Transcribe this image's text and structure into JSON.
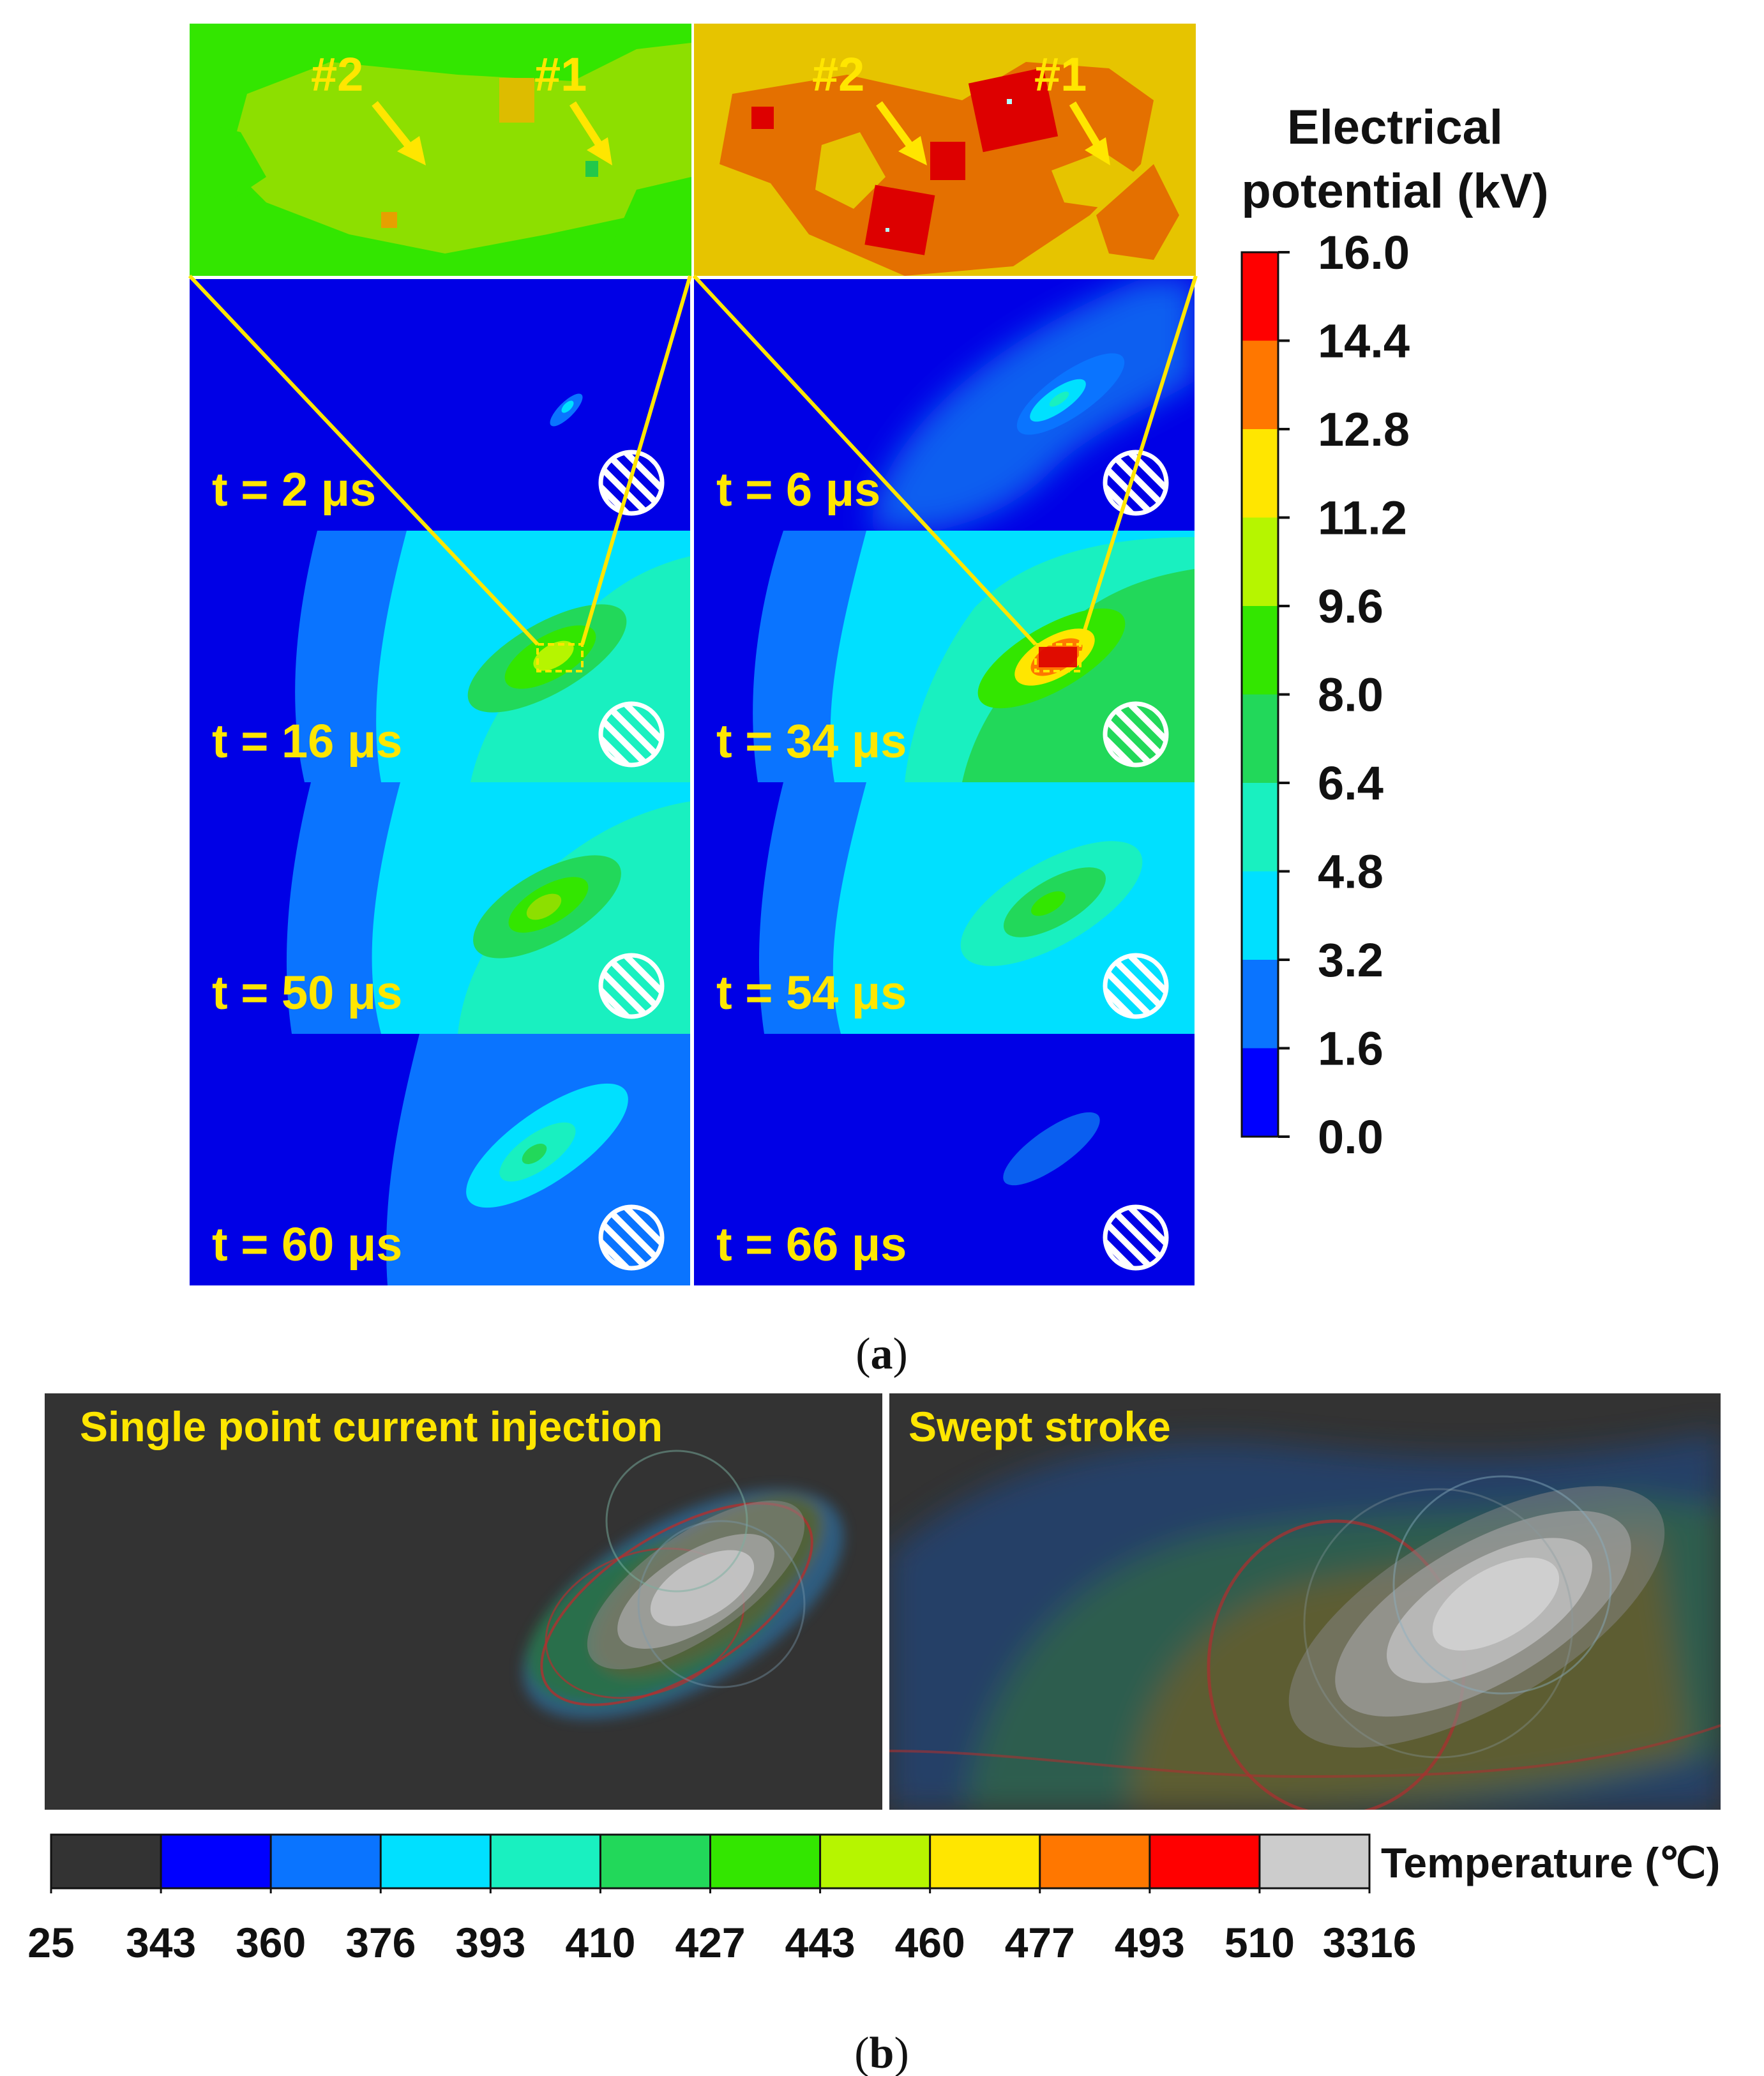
{
  "figure_a": {
    "caption_left": "(",
    "caption_letter": "a",
    "caption_right": ")",
    "zoom_row": {
      "left": {
        "markers": [
          {
            "label": "#2"
          },
          {
            "label": "#1"
          }
        ]
      },
      "right": {
        "markers": [
          {
            "label": "#2"
          },
          {
            "label": "#1"
          }
        ]
      }
    },
    "panels": [
      {
        "time": "t = 2 μs"
      },
      {
        "time": "t = 6 μs"
      },
      {
        "time": "t = 16 μs"
      },
      {
        "time": "t = 34 μs"
      },
      {
        "time": "t = 50 μs"
      },
      {
        "time": "t = 54 μs"
      },
      {
        "time": "t = 60 μs"
      },
      {
        "time": "t = 66 μs"
      }
    ],
    "colorbar": {
      "title_line1": "Electrical",
      "title_line2": "potential (kV)",
      "ticks": [
        "16.0",
        "14.4",
        "12.8",
        "11.2",
        "9.6",
        "8.0",
        "6.4",
        "4.8",
        "3.2",
        "1.6",
        "0.0"
      ],
      "colors": [
        "#ff0000",
        "#ff7700",
        "#ffe600",
        "#b6f500",
        "#33e600",
        "#22d85a",
        "#19f0c0",
        "#00e0ff",
        "#0a74ff",
        "#0000ff"
      ]
    }
  },
  "figure_b": {
    "caption_left": "(",
    "caption_letter": "b",
    "caption_right": ")",
    "panel_left_title": "Single point current  injection",
    "panel_right_title": "Swept stroke",
    "colorbar": {
      "title": "Temperature (℃)",
      "ticks": [
        "25",
        "343",
        "360",
        "376",
        "393",
        "410",
        "427",
        "443",
        "460",
        "477",
        "493",
        "510",
        "3316"
      ],
      "colors": [
        "#333333",
        "#0000ff",
        "#0a74ff",
        "#00e0ff",
        "#19f0c0",
        "#22d85a",
        "#33e600",
        "#b6f500",
        "#ffe600",
        "#ff7700",
        "#ff0000",
        "#cccccc"
      ]
    }
  }
}
